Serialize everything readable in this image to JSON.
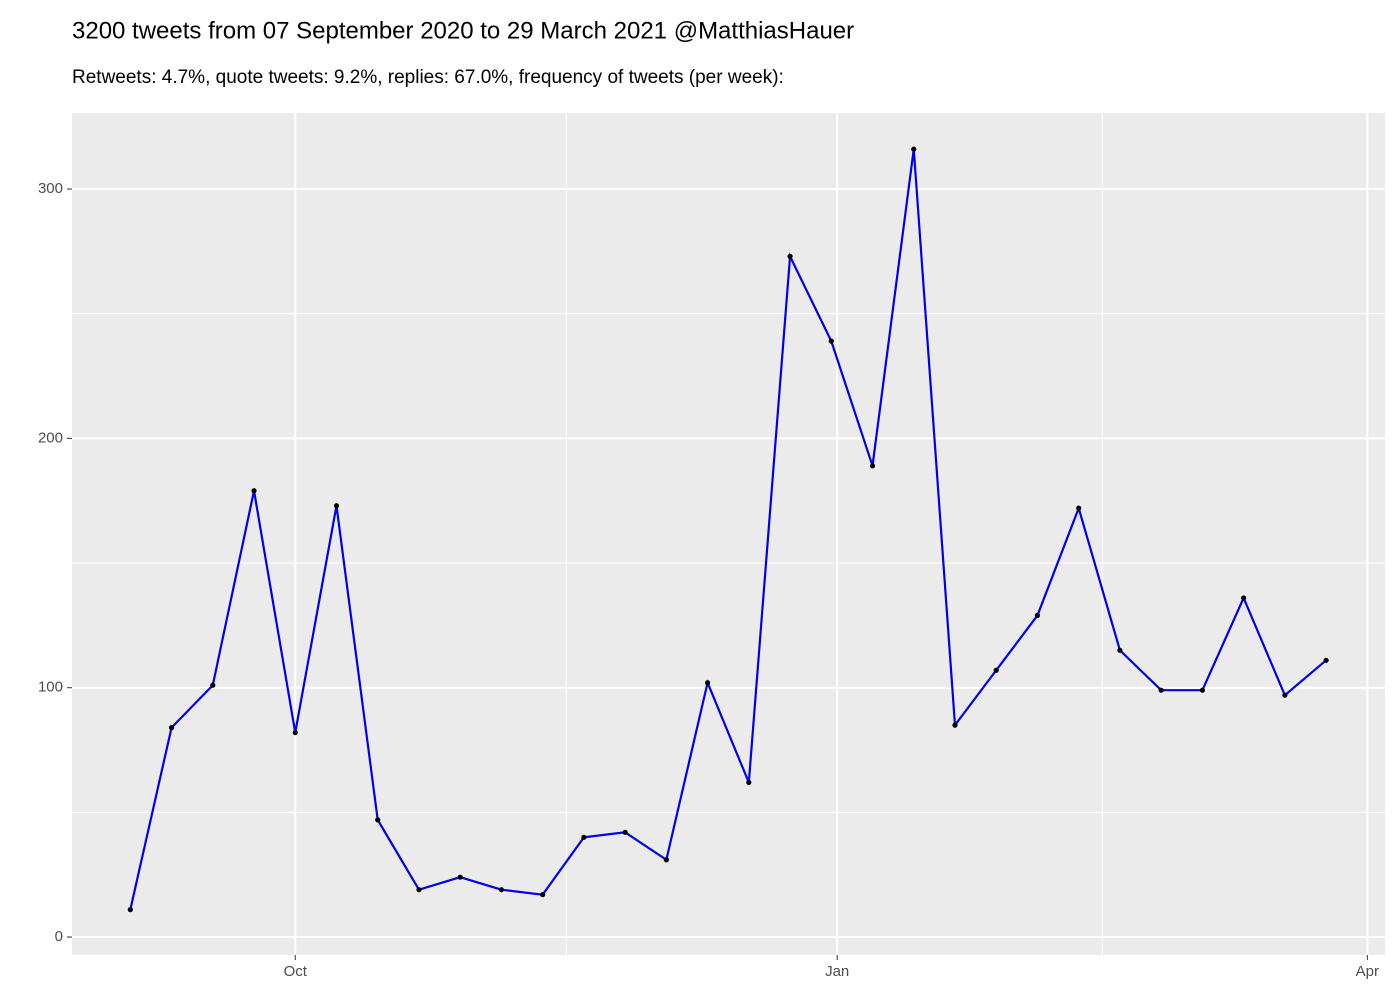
{
  "chart_data": {
    "type": "line",
    "title": "3200 tweets from 07 September 2020 to 29 March 2021 @MatthiasHauer",
    "subtitle": "Retweets: 4.7%, quote tweets: 9.2%, replies: 67.0%, frequency of tweets (per week):",
    "x": [
      -28,
      -21,
      -14,
      -7,
      0,
      7,
      14,
      21,
      28,
      35,
      42,
      49,
      56,
      63,
      70,
      77,
      84,
      91,
      98,
      105,
      112,
      119,
      126,
      133,
      140,
      147,
      154,
      161,
      168,
      175
    ],
    "series": [
      {
        "color": "#0000ee",
        "values": [
          11,
          84,
          101,
          179,
          82,
          173,
          47,
          19,
          24,
          19,
          17,
          40,
          42,
          31,
          102,
          62,
          273,
          239,
          189,
          316,
          85,
          107,
          129,
          172,
          115,
          99,
          99,
          136,
          97,
          111
        ]
      }
    ],
    "point_color": "#000000",
    "xlim": [
      -37.9,
      185
    ],
    "xticks": [
      {
        "value": 0,
        "label": "Oct"
      },
      {
        "value": 92,
        "label": "Jan"
      },
      {
        "value": 182,
        "label": "Apr"
      }
    ],
    "ylim": [
      -7.2,
      330.5
    ],
    "yticks": [
      0,
      100,
      200,
      300
    ],
    "grid": true
  }
}
